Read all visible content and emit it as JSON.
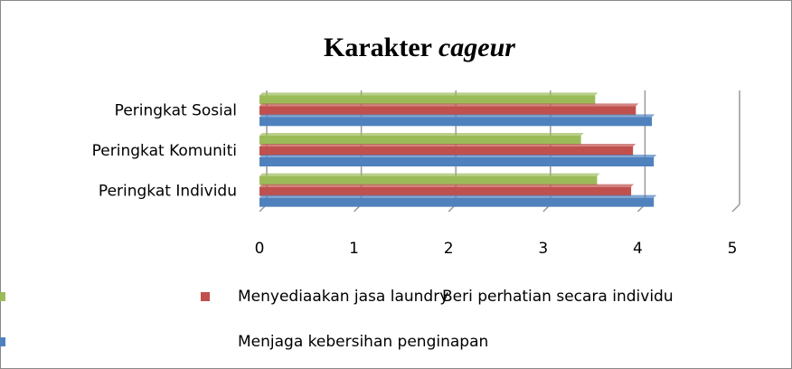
{
  "chart_data": {
    "type": "hbar",
    "title_parts": [
      "Karakter",
      "cageur"
    ],
    "categories": [
      "Peringkat Individu",
      "Peringkat Komuniti",
      "Peringkat Sosial"
    ],
    "series": [
      {
        "name": "Menyediaakan jasa laundry",
        "color": "#9bbb59",
        "values": [
          3.57,
          3.4,
          3.55
        ]
      },
      {
        "name": "Beri perhatian secara individu",
        "color": "#c0504d",
        "values": [
          3.93,
          3.95,
          3.98
        ]
      },
      {
        "name": "Menjaga kebersihan penginapan",
        "color": "#4f81bd",
        "values": [
          4.17,
          4.17,
          4.15
        ]
      }
    ],
    "xlim": [
      0,
      5
    ],
    "xticks": [
      0,
      1,
      2,
      3,
      4,
      5
    ],
    "grid": true
  }
}
